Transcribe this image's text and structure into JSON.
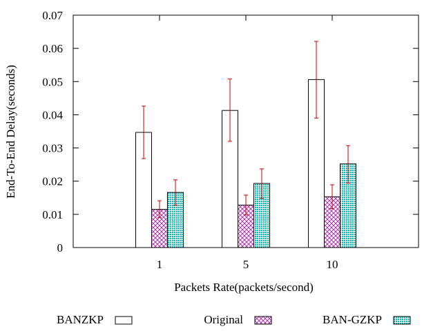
{
  "chart_data": {
    "type": "bar",
    "title": "",
    "xlabel": "Packets Rate(packets/second)",
    "ylabel": "End-To-End Delay(seconds)",
    "ylim": [
      0,
      0.07
    ],
    "yticks": [
      0,
      0.01,
      0.02,
      0.03,
      0.04,
      0.05,
      0.06,
      0.07
    ],
    "ytick_labels": [
      "0",
      "0.01",
      "0.02",
      "0.03",
      "0.04",
      "0.05",
      "0.06",
      "0.07"
    ],
    "categories": [
      "1",
      "5",
      "10"
    ],
    "grid": false,
    "legend_position": "bottom",
    "series": [
      {
        "name": "BANZKP",
        "pattern": "empty",
        "color": "#000000",
        "values": [
          0.0347,
          0.0413,
          0.0506
        ],
        "err_low": [
          0.0268,
          0.032,
          0.039
        ],
        "err_high": [
          0.0426,
          0.0508,
          0.0621
        ]
      },
      {
        "name": "Original",
        "pattern": "crosshatch",
        "color": "#b030b0",
        "values": [
          0.0115,
          0.0128,
          0.0153
        ],
        "err_low": [
          0.009,
          0.0098,
          0.0117
        ],
        "err_high": [
          0.0141,
          0.0158,
          0.0189
        ]
      },
      {
        "name": "BAN-GZKP",
        "pattern": "dots",
        "color": "#00b8b8",
        "values": [
          0.0166,
          0.0193,
          0.0252
        ],
        "err_low": [
          0.0128,
          0.0148,
          0.0194
        ],
        "err_high": [
          0.0204,
          0.0237,
          0.0307
        ]
      }
    ],
    "error_bar_color": "#cc0000"
  }
}
